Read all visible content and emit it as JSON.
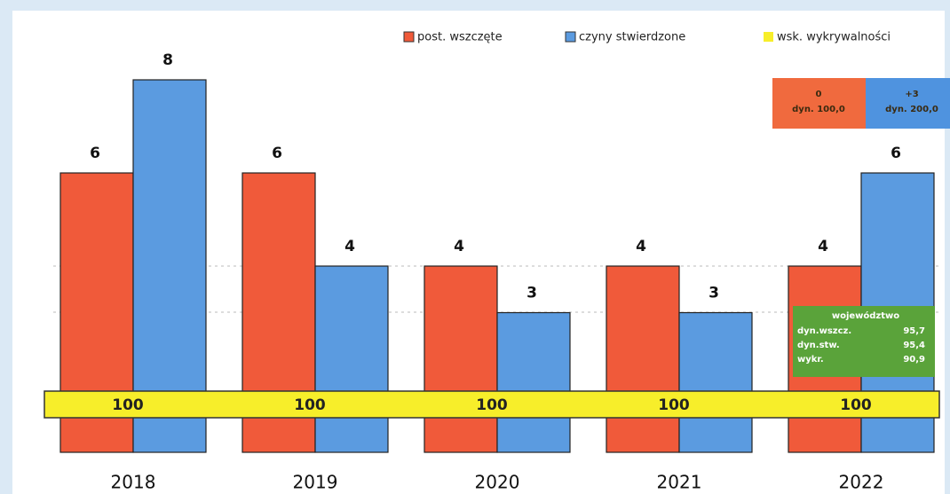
{
  "chart_data": {
    "type": "bar",
    "categories": [
      "2018",
      "2019",
      "2020",
      "2021",
      "2022"
    ],
    "series": [
      {
        "name": "post. wszczęte",
        "color": "#f05a3a",
        "values": [
          6,
          6,
          4,
          4,
          4
        ]
      },
      {
        "name": "czyny stwierdzone",
        "color": "#5b9be0",
        "values": [
          8,
          4,
          3,
          3,
          6
        ]
      },
      {
        "name": "wsk. wykrywalności",
        "color": "#f7ee2a",
        "type": "band",
        "values": [
          100,
          100,
          100,
          100,
          100
        ]
      }
    ],
    "legend": "top-right",
    "annotations": [
      {
        "lines": [
          "0",
          "dyn. 100,0"
        ],
        "color": "#f06a3e"
      },
      {
        "lines": [
          "+3",
          "dyn. 200,0"
        ],
        "color": "#4f93df"
      }
    ],
    "summary": {
      "title": "województwo",
      "color": "#5aa33a",
      "rows": [
        [
          "dyn.wszcz.",
          "95,7"
        ],
        [
          "dyn.stw.",
          "95,4"
        ],
        [
          "wykr.",
          "90,9"
        ]
      ]
    }
  }
}
